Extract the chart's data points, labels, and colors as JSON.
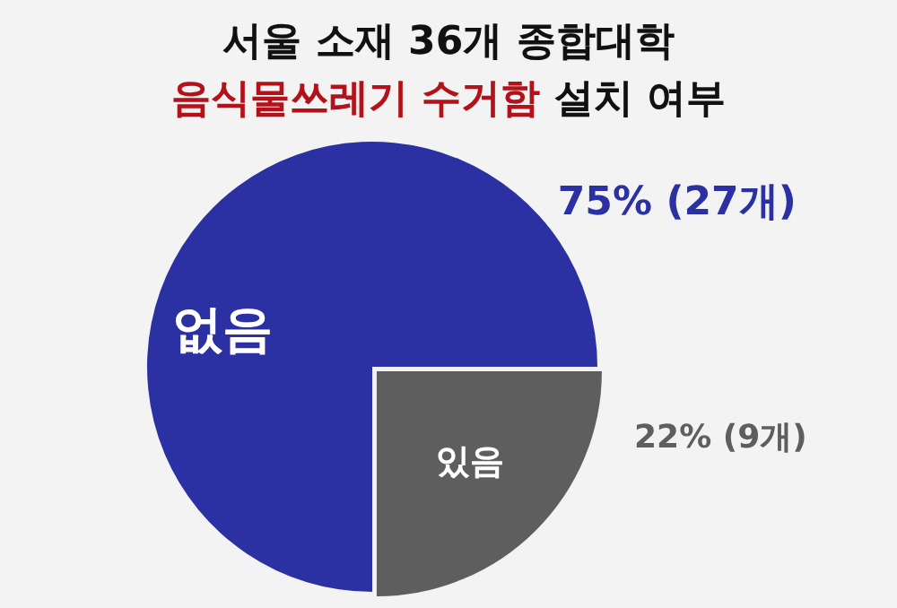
{
  "chart_data": {
    "type": "pie",
    "title": "서울 소재 36개 종합대학",
    "subtitle": "음식물쓰레기 수거함 설치 여부",
    "categories": [
      "없음",
      "있음"
    ],
    "values": [
      27,
      9
    ],
    "colors": [
      "#2b31a3",
      "#5e5e5e"
    ],
    "value_labels": [
      "75% (27개)",
      "22% (9개)"
    ],
    "legend": false
  }
}
